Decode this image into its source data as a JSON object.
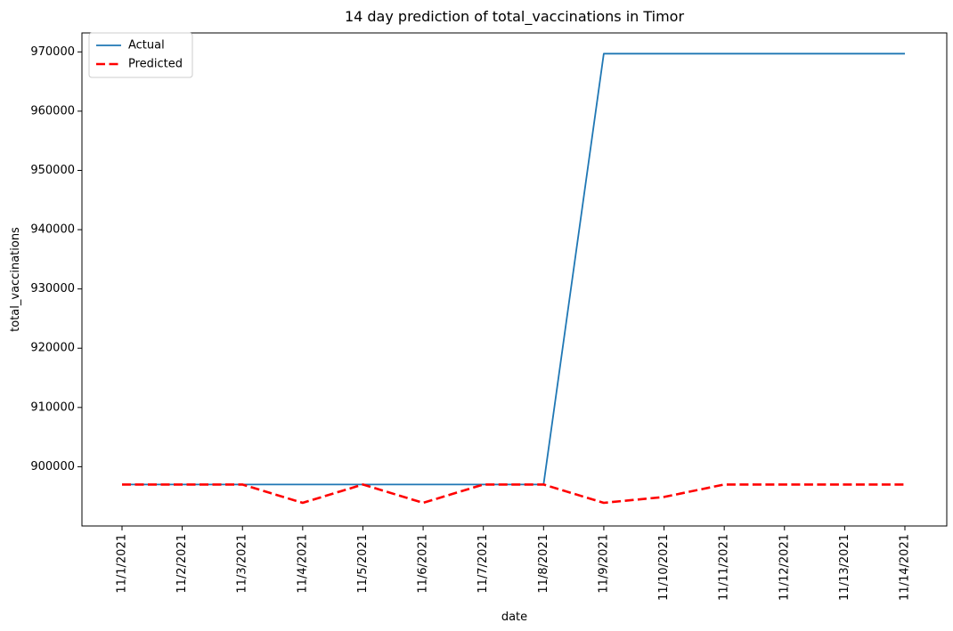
{
  "chart_data": {
    "type": "line",
    "title": "14 day prediction of total_vaccinations in Timor",
    "xlabel": "date",
    "ylabel": "total_vaccinations",
    "categories": [
      "11/1/2021",
      "11/2/2021",
      "11/3/2021",
      "11/4/2021",
      "11/5/2021",
      "11/6/2021",
      "11/7/2021",
      "11/8/2021",
      "11/9/2021",
      "11/10/2021",
      "11/11/2021",
      "11/12/2021",
      "11/13/2021",
      "11/14/2021"
    ],
    "series": [
      {
        "name": "Actual",
        "color": "#1f77b4",
        "style": "solid",
        "values": [
          897000,
          897000,
          897000,
          897000,
          897000,
          897000,
          897000,
          897000,
          969700,
          969700,
          969700,
          969700,
          969700,
          969700
        ]
      },
      {
        "name": "Predicted",
        "color": "#ff0000",
        "style": "dashed",
        "values": [
          897000,
          897000,
          897000,
          893900,
          897000,
          893900,
          897000,
          897000,
          893900,
          894900,
          897000,
          897000,
          897000,
          897000
        ]
      }
    ],
    "yticks": [
      900000,
      910000,
      920000,
      930000,
      940000,
      950000,
      960000,
      970000
    ],
    "ylim": [
      890000,
      973200
    ],
    "grid": false,
    "legend": "top-left"
  }
}
